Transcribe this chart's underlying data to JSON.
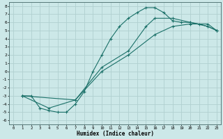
{
  "xlabel": "Humidex (Indice chaleur)",
  "bg_color": "#cce8e8",
  "line_color": "#1a7068",
  "grid_color": "#b0d0d0",
  "xlim": [
    -0.5,
    23.5
  ],
  "ylim": [
    -6.5,
    8.5
  ],
  "xticks": [
    0,
    1,
    2,
    3,
    4,
    5,
    6,
    7,
    8,
    9,
    10,
    11,
    12,
    13,
    14,
    15,
    16,
    17,
    18,
    19,
    20,
    21,
    22,
    23
  ],
  "yticks": [
    -6,
    -5,
    -4,
    -3,
    -2,
    -1,
    0,
    1,
    2,
    3,
    4,
    5,
    6,
    7,
    8
  ],
  "line1_x": [
    1,
    2,
    3,
    4,
    5,
    6,
    7,
    8,
    9,
    10,
    11,
    12,
    13,
    14,
    15,
    16,
    17,
    18,
    19,
    20,
    21,
    22,
    23
  ],
  "line1_y": [
    -3,
    -3,
    -4.5,
    -4.8,
    -5,
    -5,
    -4,
    -2.5,
    0,
    2,
    4,
    5.5,
    6.5,
    7.2,
    7.8,
    7.8,
    7.2,
    6.2,
    6,
    6,
    5.8,
    5.5,
    5
  ],
  "line2_x": [
    1,
    7,
    10,
    13,
    16,
    18,
    20,
    22,
    23
  ],
  "line2_y": [
    -3,
    -3.5,
    0,
    2,
    4.5,
    5.5,
    5.8,
    5.8,
    5
  ],
  "line3_x": [
    1,
    4,
    7,
    10,
    13,
    15,
    16,
    18,
    20,
    22,
    23
  ],
  "line3_y": [
    -3,
    -4.5,
    -3.5,
    0.5,
    2.5,
    5.5,
    6.5,
    6.5,
    6,
    5.5,
    5
  ]
}
